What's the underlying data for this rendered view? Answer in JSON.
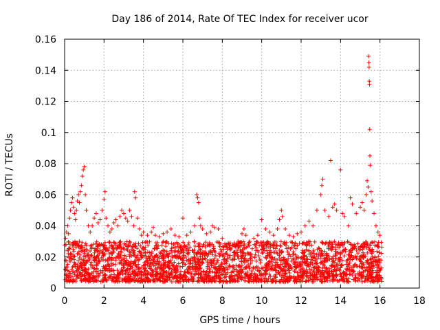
{
  "chart_data": {
    "type": "scatter",
    "title": "Day 186 of 2014, Rate Of TEC Index for receiver ucor",
    "xlabel": "GPS time / hours",
    "ylabel": "ROTI / TECUs",
    "xlim": [
      0,
      18
    ],
    "ylim": [
      0,
      0.16
    ],
    "xticks": [
      0,
      2,
      4,
      6,
      8,
      10,
      12,
      14,
      16,
      18
    ],
    "yticks": [
      0,
      0.02,
      0.04,
      0.06,
      0.08,
      0.1,
      0.12,
      0.14,
      0.16
    ],
    "xtick_labels": [
      "0",
      "2",
      "4",
      "6",
      "8",
      "10",
      "12",
      "14",
      "16",
      "18"
    ],
    "ytick_labels": [
      "0",
      "0.02",
      "0.04",
      "0.06",
      "0.08",
      "0.1",
      "0.12",
      "0.14",
      "0.16"
    ],
    "grid": true,
    "marker": "+",
    "color": "#ff0000",
    "series": [
      {
        "name": "ROTI",
        "points": [
          [
            0.05,
            0.032
          ],
          [
            0.1,
            0.036
          ],
          [
            0.15,
            0.04
          ],
          [
            0.2,
            0.035
          ],
          [
            0.25,
            0.045
          ],
          [
            0.3,
            0.05
          ],
          [
            0.35,
            0.055
          ],
          [
            0.4,
            0.058
          ],
          [
            0.45,
            0.052
          ],
          [
            0.5,
            0.048
          ],
          [
            0.55,
            0.044
          ],
          [
            0.6,
            0.05
          ],
          [
            0.65,
            0.056
          ],
          [
            0.7,
            0.06
          ],
          [
            0.75,
            0.055
          ],
          [
            0.8,
            0.062
          ],
          [
            0.85,
            0.066
          ],
          [
            0.9,
            0.072
          ],
          [
            0.95,
            0.076
          ],
          [
            1.0,
            0.078
          ],
          [
            1.05,
            0.06
          ],
          [
            1.1,
            0.05
          ],
          [
            1.2,
            0.04
          ],
          [
            1.3,
            0.036
          ],
          [
            1.4,
            0.04
          ],
          [
            1.5,
            0.045
          ],
          [
            1.6,
            0.048
          ],
          [
            1.7,
            0.042
          ],
          [
            1.8,
            0.044
          ],
          [
            1.9,
            0.05
          ],
          [
            2.0,
            0.057
          ],
          [
            2.05,
            0.062
          ],
          [
            2.1,
            0.045
          ],
          [
            2.2,
            0.04
          ],
          [
            2.3,
            0.036
          ],
          [
            2.4,
            0.038
          ],
          [
            2.5,
            0.042
          ],
          [
            2.6,
            0.044
          ],
          [
            2.7,
            0.04
          ],
          [
            2.8,
            0.046
          ],
          [
            2.9,
            0.05
          ],
          [
            3.0,
            0.048
          ],
          [
            3.1,
            0.045
          ],
          [
            3.2,
            0.043
          ],
          [
            3.3,
            0.05
          ],
          [
            3.4,
            0.046
          ],
          [
            3.5,
            0.04
          ],
          [
            3.55,
            0.062
          ],
          [
            3.6,
            0.058
          ],
          [
            3.7,
            0.045
          ],
          [
            3.8,
            0.038
          ],
          [
            3.9,
            0.034
          ],
          [
            4.0,
            0.036
          ],
          [
            4.2,
            0.034
          ],
          [
            4.4,
            0.036
          ],
          [
            4.5,
            0.039
          ],
          [
            4.6,
            0.034
          ],
          [
            4.8,
            0.033
          ],
          [
            5.0,
            0.035
          ],
          [
            5.2,
            0.036
          ],
          [
            5.4,
            0.038
          ],
          [
            5.6,
            0.034
          ],
          [
            5.8,
            0.033
          ],
          [
            6.0,
            0.045
          ],
          [
            6.2,
            0.034
          ],
          [
            6.4,
            0.036
          ],
          [
            6.6,
            0.04
          ],
          [
            6.7,
            0.06
          ],
          [
            6.75,
            0.058
          ],
          [
            6.8,
            0.055
          ],
          [
            6.85,
            0.045
          ],
          [
            6.9,
            0.04
          ],
          [
            7.0,
            0.038
          ],
          [
            7.2,
            0.035
          ],
          [
            7.4,
            0.036
          ],
          [
            7.5,
            0.04
          ],
          [
            7.6,
            0.039
          ],
          [
            7.8,
            0.038
          ],
          [
            8.0,
            0.032
          ],
          [
            8.2,
            0.028
          ],
          [
            8.4,
            0.029
          ],
          [
            8.6,
            0.028
          ],
          [
            8.8,
            0.03
          ],
          [
            9.0,
            0.035
          ],
          [
            9.1,
            0.038
          ],
          [
            9.2,
            0.034
          ],
          [
            9.4,
            0.03
          ],
          [
            9.6,
            0.032
          ],
          [
            9.8,
            0.034
          ],
          [
            10.0,
            0.044
          ],
          [
            10.2,
            0.038
          ],
          [
            10.4,
            0.036
          ],
          [
            10.6,
            0.034
          ],
          [
            10.8,
            0.038
          ],
          [
            10.9,
            0.044
          ],
          [
            11.0,
            0.05
          ],
          [
            11.05,
            0.046
          ],
          [
            11.2,
            0.038
          ],
          [
            11.4,
            0.034
          ],
          [
            11.6,
            0.033
          ],
          [
            11.8,
            0.035
          ],
          [
            12.0,
            0.036
          ],
          [
            12.2,
            0.04
          ],
          [
            12.4,
            0.043
          ],
          [
            12.6,
            0.04
          ],
          [
            12.8,
            0.05
          ],
          [
            13.0,
            0.06
          ],
          [
            13.05,
            0.066
          ],
          [
            13.1,
            0.07
          ],
          [
            13.2,
            0.05
          ],
          [
            13.4,
            0.046
          ],
          [
            13.5,
            0.082
          ],
          [
            13.6,
            0.052
          ],
          [
            13.7,
            0.054
          ],
          [
            13.8,
            0.05
          ],
          [
            14.0,
            0.076
          ],
          [
            14.1,
            0.048
          ],
          [
            14.2,
            0.046
          ],
          [
            14.4,
            0.04
          ],
          [
            14.5,
            0.058
          ],
          [
            14.6,
            0.054
          ],
          [
            14.8,
            0.048
          ],
          [
            15.0,
            0.052
          ],
          [
            15.1,
            0.055
          ],
          [
            15.2,
            0.05
          ],
          [
            15.3,
            0.06
          ],
          [
            15.35,
            0.069
          ],
          [
            15.4,
            0.065
          ],
          [
            15.42,
            0.149
          ],
          [
            15.44,
            0.145
          ],
          [
            15.45,
            0.142
          ],
          [
            15.46,
            0.133
          ],
          [
            15.47,
            0.131
          ],
          [
            15.48,
            0.102
          ],
          [
            15.49,
            0.085
          ],
          [
            15.5,
            0.079
          ],
          [
            15.55,
            0.062
          ],
          [
            15.6,
            0.056
          ],
          [
            15.7,
            0.048
          ],
          [
            15.8,
            0.04
          ],
          [
            15.9,
            0.036
          ],
          [
            16.0,
            0.034
          ]
        ],
        "band": {
          "description": "dense cloud of points from 0 to 16 hours between ~0.005 and ~0.03 TECUs",
          "x_range": [
            0,
            16.1
          ],
          "y_min": 0.004,
          "y_max": 0.03
        }
      }
    ]
  }
}
